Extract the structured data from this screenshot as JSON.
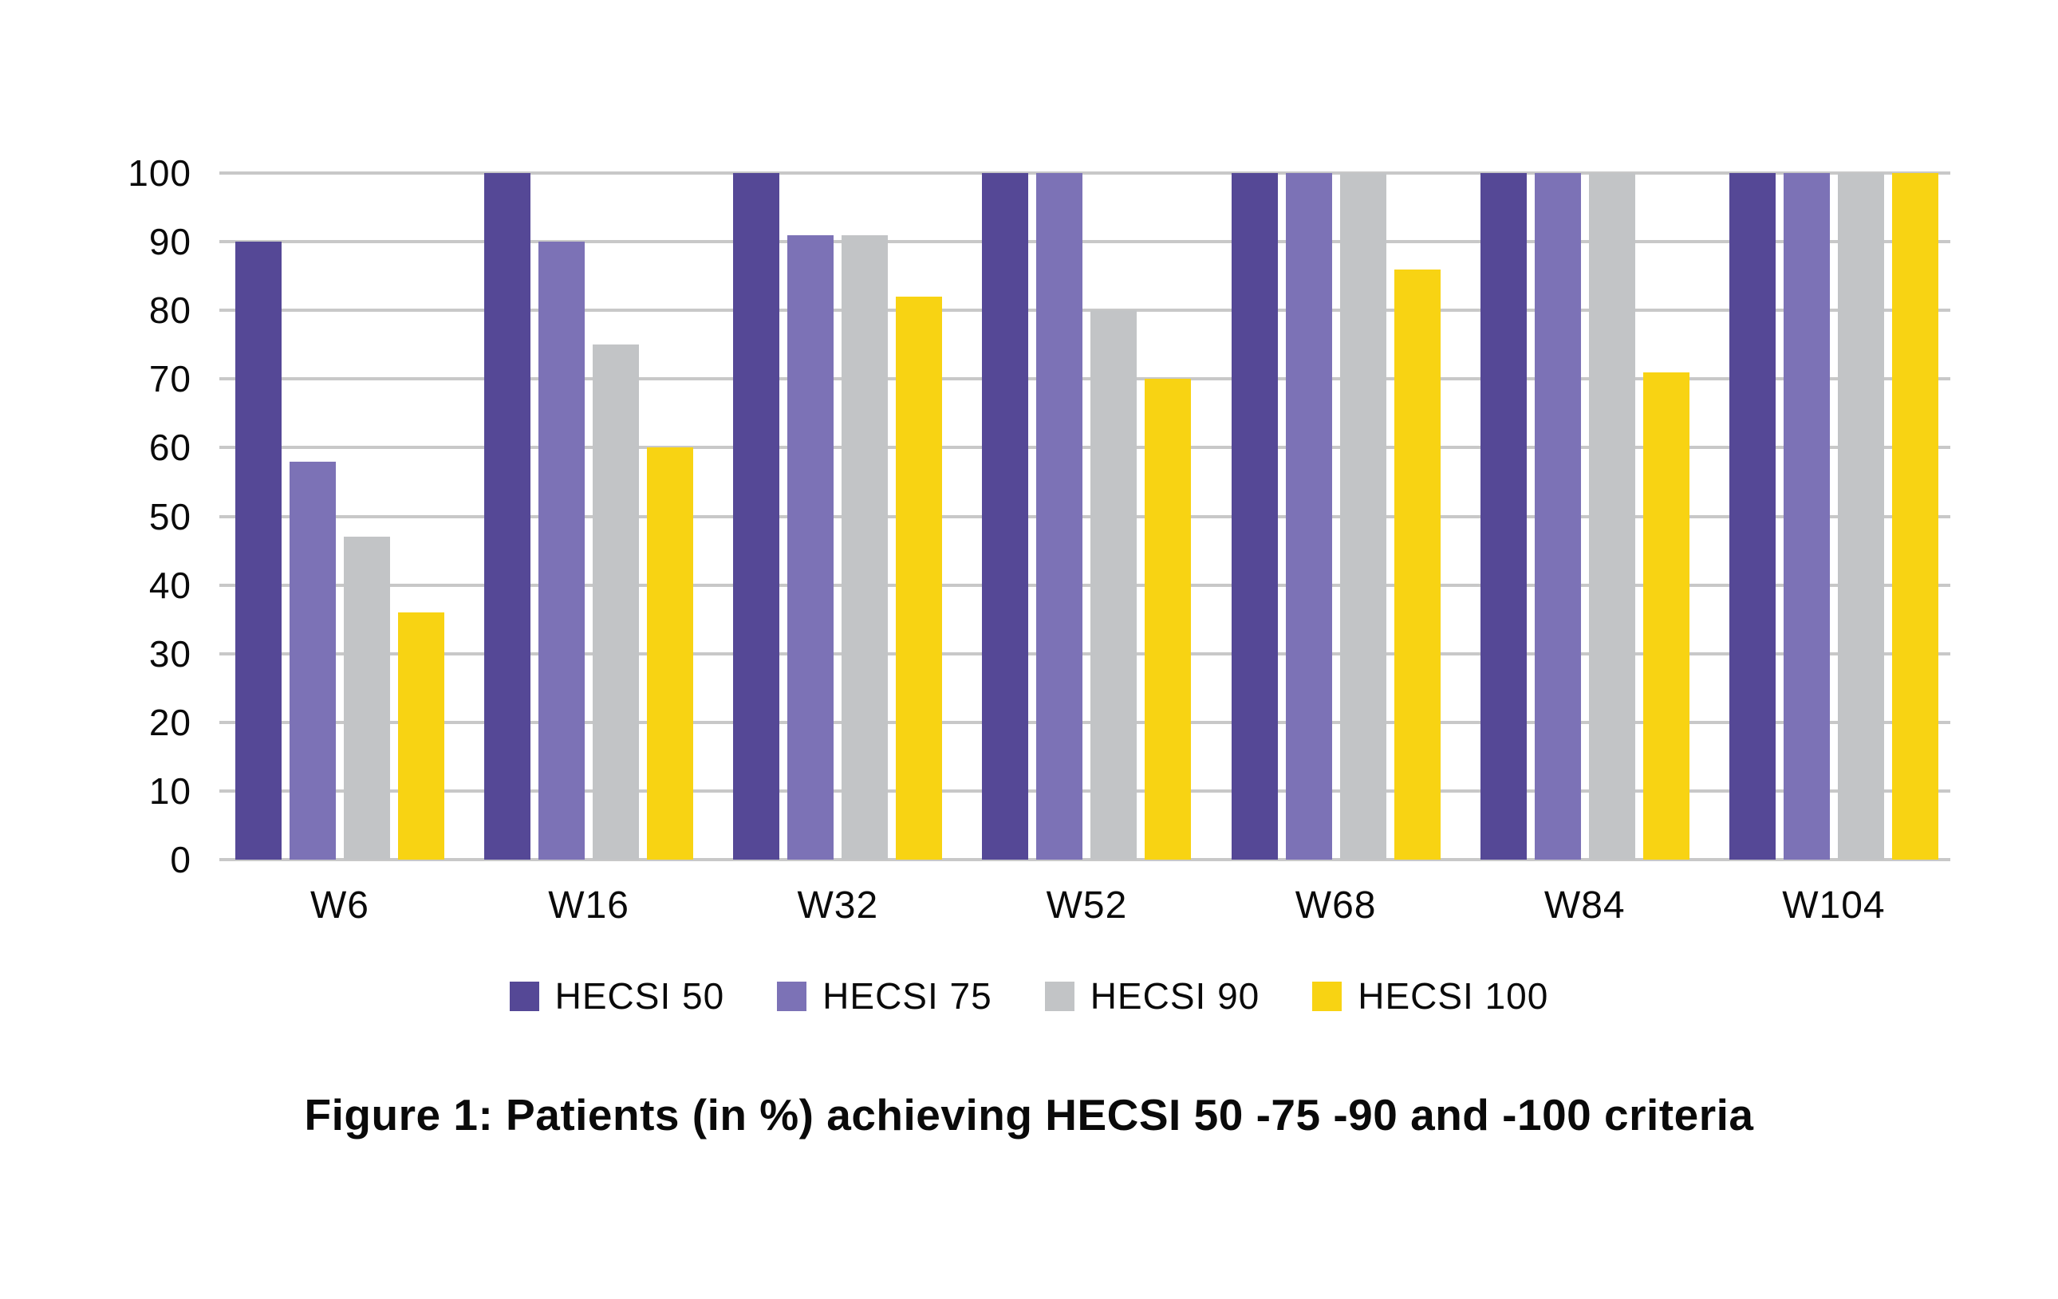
{
  "figure": {
    "caption": "Figure 1: Patients (in %) achieving HECSI 50 -75 -90 and -100 criteria"
  },
  "colors": {
    "hecsi_50": "#554896",
    "hecsi_75": "#7C72B6",
    "hecsi_90": "#C2C4C6",
    "hecsi_100": "#F8D313",
    "gridline": "#C8C8C8",
    "text": "#0A0A0A",
    "background": "#FFFFFF"
  },
  "chart_data": {
    "type": "bar",
    "title": "Figure 1: Patients (in %) achieving HECSI 50 -75 -90 and -100 criteria",
    "xlabel": "",
    "ylabel": "",
    "categories": [
      "W6",
      "W16",
      "W32",
      "W52",
      "W68",
      "W84",
      "W104"
    ],
    "series": [
      {
        "name": "HECSI 50",
        "color": "#554896",
        "values": [
          90,
          100,
          100,
          100,
          100,
          100,
          100
        ]
      },
      {
        "name": "HECSI 75",
        "color": "#7C72B6",
        "values": [
          58,
          90,
          91,
          100,
          100,
          100,
          100
        ]
      },
      {
        "name": "HECSI 90",
        "color": "#C2C4C6",
        "values": [
          47,
          75,
          91,
          80,
          100,
          100,
          100
        ]
      },
      {
        "name": "HECSI 100",
        "color": "#F8D313",
        "values": [
          36,
          60,
          82,
          70,
          86,
          71,
          100
        ]
      }
    ],
    "ylim": [
      0,
      100
    ],
    "yticks": [
      0,
      10,
      20,
      30,
      40,
      50,
      60,
      70,
      80,
      90,
      100
    ],
    "grid": "horizontal",
    "legend_position": "bottom"
  }
}
